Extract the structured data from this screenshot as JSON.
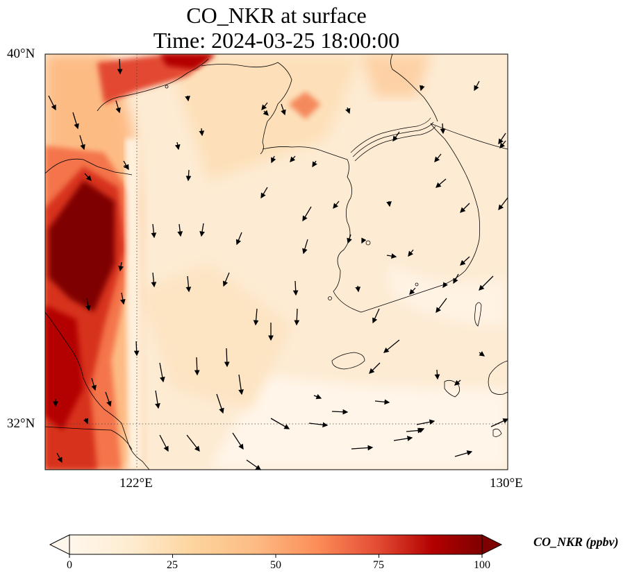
{
  "title": {
    "line1": "CO_NKR at surface",
    "line2": "Time: 2024-03-25 18:00:00"
  },
  "map": {
    "lat_labels": [
      "40°N",
      "32°N"
    ],
    "lon_labels": [
      "122°E",
      "130°E"
    ],
    "extent": {
      "lon_min": 120,
      "lon_max": 130,
      "lat_min": 31,
      "lat_max": 40
    },
    "gridlines": {
      "lon": [
        122
      ],
      "lat": [
        32
      ],
      "style": "dotted"
    },
    "colors": {
      "plume_dark": "#7f0000",
      "plume_mid": "#d7301f",
      "background_low": "#fff7ec",
      "background_mid": "#fdd49e"
    }
  },
  "colorbar": {
    "label": "CO_NKR (ppbv)",
    "ticks": [
      "0",
      "25",
      "50",
      "75",
      "100"
    ],
    "range": [
      0,
      100
    ],
    "colormap": "OrRd",
    "extend": "both"
  }
}
